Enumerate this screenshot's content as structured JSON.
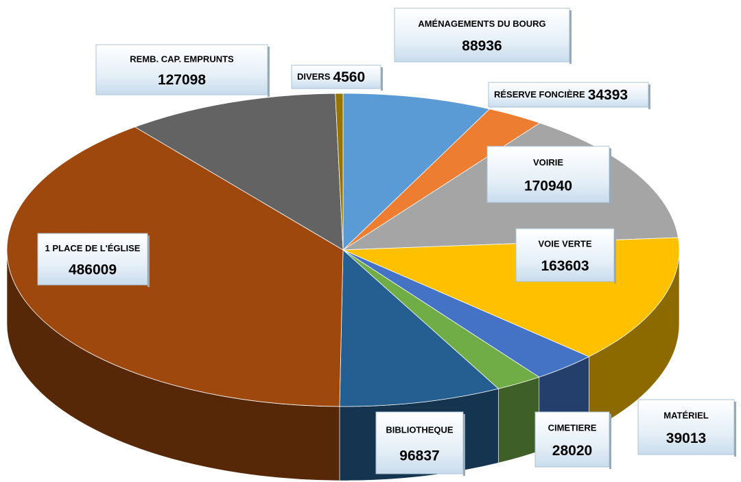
{
  "chart_data": {
    "type": "pie3d",
    "categories": [
      "AMÉNAGEMENTS DU BOURG",
      "RÉSERVE FONCIÈRE",
      "VOIRIE",
      "VOIE VERTE",
      "MATÉRIEL",
      "CIMETIERE",
      "BIBLIOTHEQUE",
      "1 PLACE DE L'ÉGLISE",
      "REMB. CAP. EMPRUNTS",
      "DIVERS"
    ],
    "values": [
      88936,
      34393,
      170940,
      163603,
      39013,
      28020,
      96837,
      486009,
      127098,
      4560
    ],
    "colors": [
      "#5b9bd5",
      "#ed7d31",
      "#a5a5a5",
      "#ffc000",
      "#4472c4",
      "#70ad47",
      "#255e91",
      "#9e480e",
      "#636363",
      "#997300"
    ]
  }
}
